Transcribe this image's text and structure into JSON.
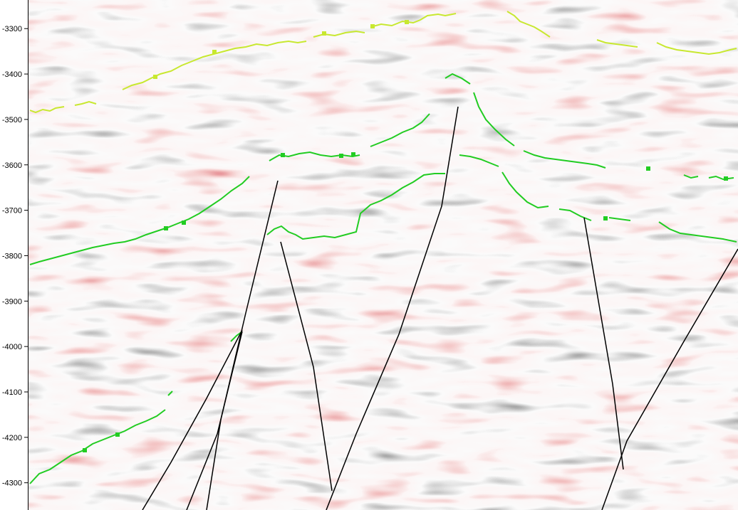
{
  "chart_data": {
    "type": "heatmap",
    "title": "",
    "xlabel": "",
    "ylabel": "",
    "ylim": [
      -4360,
      -3237
    ],
    "y_ticks": [
      -3300,
      -3400,
      -3500,
      -3600,
      -3700,
      -3800,
      -3900,
      -4000,
      -4100,
      -4200,
      -4300
    ],
    "y_tick_labels": [
      "-3300",
      "-3400",
      "-3500",
      "-3600",
      "-3700",
      "-3800",
      "-3900",
      "-4000",
      "-4100",
      "-4200",
      "-4300"
    ],
    "colors": {
      "positive_amplitude": "#b01020",
      "negative_amplitude": "#202020",
      "background": "#f4f4f4",
      "horizon_upper": "#c8e830",
      "horizon_lower": "#22cc22",
      "fault": "#000000"
    },
    "grid": false,
    "legend": "none"
  }
}
